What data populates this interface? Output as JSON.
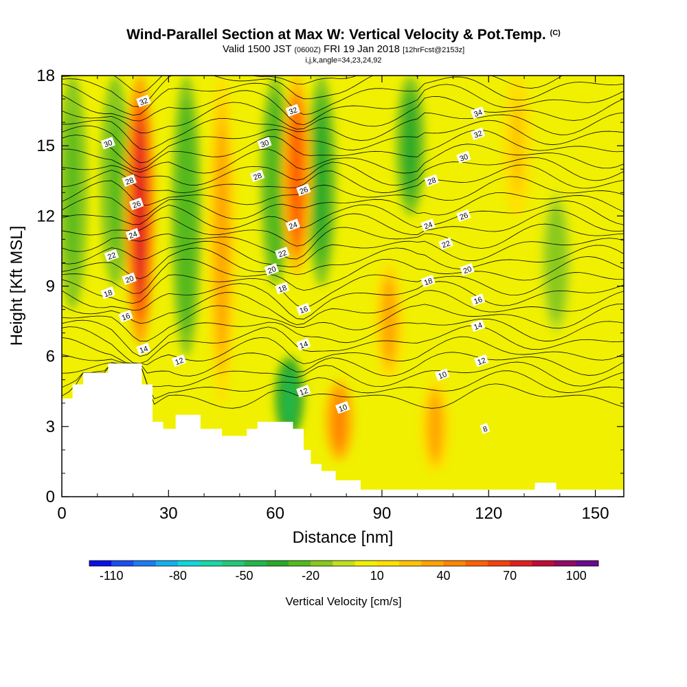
{
  "header": {
    "title": "Wind-Parallel Section at Max W: Vertical Velocity & Pot.Temp.",
    "title_tag": "(C)",
    "subtitle_main_a": "Valid 1500 JST",
    "subtitle_small_a": "(0600Z)",
    "subtitle_main_b": "FRI 19 Jan 2018",
    "subtitle_small_b": "[12hrFcst@2153z]",
    "subtitle2": "i,j,k,angle=34,23,24,92"
  },
  "chart_data": {
    "type": "heatmap",
    "xlabel": "Distance [nm]",
    "ylabel": "Height [Kft MSL]",
    "xlim": [
      0,
      158
    ],
    "ylim": [
      0,
      18
    ],
    "xticks": [
      0,
      30,
      60,
      90,
      120,
      150
    ],
    "yticks": [
      0,
      3,
      6,
      9,
      12,
      15,
      18
    ],
    "grid": false,
    "field": "Vertical Velocity [cm/s] (filled) with Potential Temperature [C] (contours)",
    "colorbar": {
      "title": "Vertical Velocity [cm/s]",
      "tick_labels": [
        "-110",
        "-80",
        "-50",
        "-20",
        "10",
        "40",
        "70",
        "100"
      ],
      "levels": [
        -120,
        -110,
        -100,
        -90,
        -80,
        -70,
        -60,
        -50,
        -40,
        -30,
        -20,
        -10,
        0,
        10,
        20,
        30,
        40,
        50,
        60,
        70,
        80,
        90,
        100,
        110
      ],
      "colors": [
        "#0a0fe6",
        "#1a4ef0",
        "#1b7df2",
        "#14aeee",
        "#10d6d9",
        "#1ad6a8",
        "#22c97a",
        "#20b84a",
        "#2aa82a",
        "#55b91e",
        "#8ac91c",
        "#c2e01a",
        "#f0f000",
        "#ffe000",
        "#ffc400",
        "#ffa500",
        "#ff8400",
        "#ff6200",
        "#f2420d",
        "#e02020",
        "#c00a3a",
        "#8f0a64",
        "#6a0a8c"
      ]
    },
    "updrafts_cm_s": [
      {
        "x_nm": 22,
        "top_kft": 18,
        "bottom_kft": 6.5,
        "peak": 70
      },
      {
        "x_nm": 66,
        "top_kft": 18,
        "bottom_kft": 9.5,
        "peak": 55
      },
      {
        "x_nm": 78,
        "top_kft": 5,
        "bottom_kft": 1.5,
        "peak": 45
      },
      {
        "x_nm": 45,
        "top_kft": 18,
        "bottom_kft": 4,
        "peak": 35
      },
      {
        "x_nm": 92,
        "top_kft": 10,
        "bottom_kft": 5,
        "peak": 30
      },
      {
        "x_nm": 105,
        "top_kft": 5,
        "bottom_kft": 1,
        "peak": 30
      },
      {
        "x_nm": 128,
        "top_kft": 18,
        "bottom_kft": 12,
        "peak": 25
      }
    ],
    "downdrafts_cm_s": [
      {
        "x_nm": 3,
        "top_kft": 18,
        "bottom_kft": 8,
        "peak": -25
      },
      {
        "x_nm": 15,
        "top_kft": 18,
        "bottom_kft": 9,
        "peak": -25
      },
      {
        "x_nm": 35,
        "top_kft": 18,
        "bottom_kft": 6,
        "peak": -30
      },
      {
        "x_nm": 60,
        "top_kft": 18,
        "bottom_kft": 9,
        "peak": -30
      },
      {
        "x_nm": 73,
        "top_kft": 18,
        "bottom_kft": 9,
        "peak": -40
      },
      {
        "x_nm": 64,
        "top_kft": 6,
        "bottom_kft": 2.5,
        "peak": -45
      },
      {
        "x_nm": 98,
        "top_kft": 18,
        "bottom_kft": 12,
        "peak": -35
      },
      {
        "x_nm": 139,
        "top_kft": 13,
        "bottom_kft": 7,
        "peak": -15
      }
    ],
    "terrain_kft": [
      {
        "x": 0,
        "h": 4.2
      },
      {
        "x": 3,
        "h": 4.8
      },
      {
        "x": 6,
        "h": 5.3
      },
      {
        "x": 13,
        "h": 5.7
      },
      {
        "x": 22.5,
        "h": 4.8
      },
      {
        "x": 25.5,
        "h": 3.2
      },
      {
        "x": 28.5,
        "h": 2.9
      },
      {
        "x": 32,
        "h": 3.5
      },
      {
        "x": 39,
        "h": 2.9
      },
      {
        "x": 45,
        "h": 2.6
      },
      {
        "x": 52,
        "h": 2.9
      },
      {
        "x": 55,
        "h": 3.2
      },
      {
        "x": 65,
        "h": 2.9
      },
      {
        "x": 68,
        "h": 2.0
      },
      {
        "x": 70,
        "h": 1.4
      },
      {
        "x": 73,
        "h": 1.1
      },
      {
        "x": 77,
        "h": 0.7
      },
      {
        "x": 84,
        "h": 0.3
      },
      {
        "x": 133,
        "h": 0.6
      },
      {
        "x": 139,
        "h": 0.3
      },
      {
        "x": 158,
        "h": 0.3
      }
    ],
    "theta_contour_labels": [
      {
        "text": "32",
        "x": 23,
        "y": 16.9
      },
      {
        "text": "32",
        "x": 65,
        "y": 16.5
      },
      {
        "text": "34",
        "x": 117,
        "y": 16.4
      },
      {
        "text": "32",
        "x": 117,
        "y": 15.5
      },
      {
        "text": "30",
        "x": 13,
        "y": 15.1
      },
      {
        "text": "30",
        "x": 57,
        "y": 15.1
      },
      {
        "text": "30",
        "x": 113,
        "y": 14.5
      },
      {
        "text": "28",
        "x": 19,
        "y": 13.5
      },
      {
        "text": "28",
        "x": 55,
        "y": 13.7
      },
      {
        "text": "28",
        "x": 104,
        "y": 13.5
      },
      {
        "text": "26",
        "x": 21,
        "y": 12.5
      },
      {
        "text": "26",
        "x": 68,
        "y": 13.1
      },
      {
        "text": "26",
        "x": 113,
        "y": 12.0
      },
      {
        "text": "24",
        "x": 20,
        "y": 11.2
      },
      {
        "text": "24",
        "x": 65,
        "y": 11.6
      },
      {
        "text": "24",
        "x": 103,
        "y": 11.6
      },
      {
        "text": "22",
        "x": 14,
        "y": 10.3
      },
      {
        "text": "22",
        "x": 62,
        "y": 10.4
      },
      {
        "text": "22",
        "x": 108,
        "y": 10.8
      },
      {
        "text": "20",
        "x": 19,
        "y": 9.3
      },
      {
        "text": "20",
        "x": 59,
        "y": 9.7
      },
      {
        "text": "20",
        "x": 114,
        "y": 9.7
      },
      {
        "text": "18",
        "x": 13,
        "y": 8.7
      },
      {
        "text": "18",
        "x": 62,
        "y": 8.9
      },
      {
        "text": "18",
        "x": 103,
        "y": 9.2
      },
      {
        "text": "16",
        "x": 18,
        "y": 7.7
      },
      {
        "text": "16",
        "x": 68,
        "y": 8.0
      },
      {
        "text": "16",
        "x": 117,
        "y": 8.4
      },
      {
        "text": "14",
        "x": 23,
        "y": 6.3
      },
      {
        "text": "14",
        "x": 68,
        "y": 6.5
      },
      {
        "text": "14",
        "x": 117,
        "y": 7.3
      },
      {
        "text": "12",
        "x": 33,
        "y": 5.8
      },
      {
        "text": "12",
        "x": 68,
        "y": 4.5
      },
      {
        "text": "12",
        "x": 118,
        "y": 5.8
      },
      {
        "text": "10",
        "x": 79,
        "y": 3.8
      },
      {
        "text": "10",
        "x": 107,
        "y": 5.2
      },
      {
        "text": "8",
        "x": 119,
        "y": 2.9
      }
    ]
  }
}
